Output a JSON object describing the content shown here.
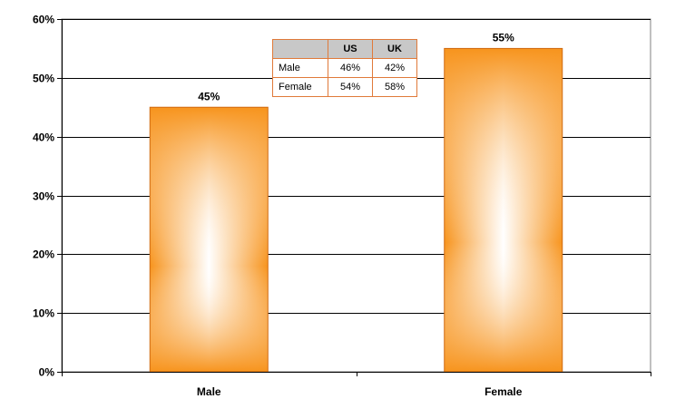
{
  "chart_data": {
    "type": "bar",
    "categories": [
      "Male",
      "Female"
    ],
    "values": [
      45,
      55
    ],
    "data_labels": [
      "45%",
      "55%"
    ],
    "ylim": [
      0,
      60
    ],
    "y_ticks": [
      0,
      10,
      20,
      30,
      40,
      50,
      60
    ],
    "y_tick_labels": [
      "0%",
      "10%",
      "20%",
      "30%",
      "40%",
      "50%",
      "60%"
    ],
    "grid": true,
    "legend": "none",
    "colors": {
      "bar_edge": "#f7941d",
      "bar_center": "#ffffff",
      "bar_border": "#d06a10"
    },
    "inset_table": {
      "columns": [
        "",
        "US",
        "UK"
      ],
      "rows": [
        {
          "label": "Male",
          "values": [
            "46%",
            "42%"
          ]
        },
        {
          "label": "Female",
          "values": [
            "54%",
            "58%"
          ]
        }
      ]
    }
  }
}
